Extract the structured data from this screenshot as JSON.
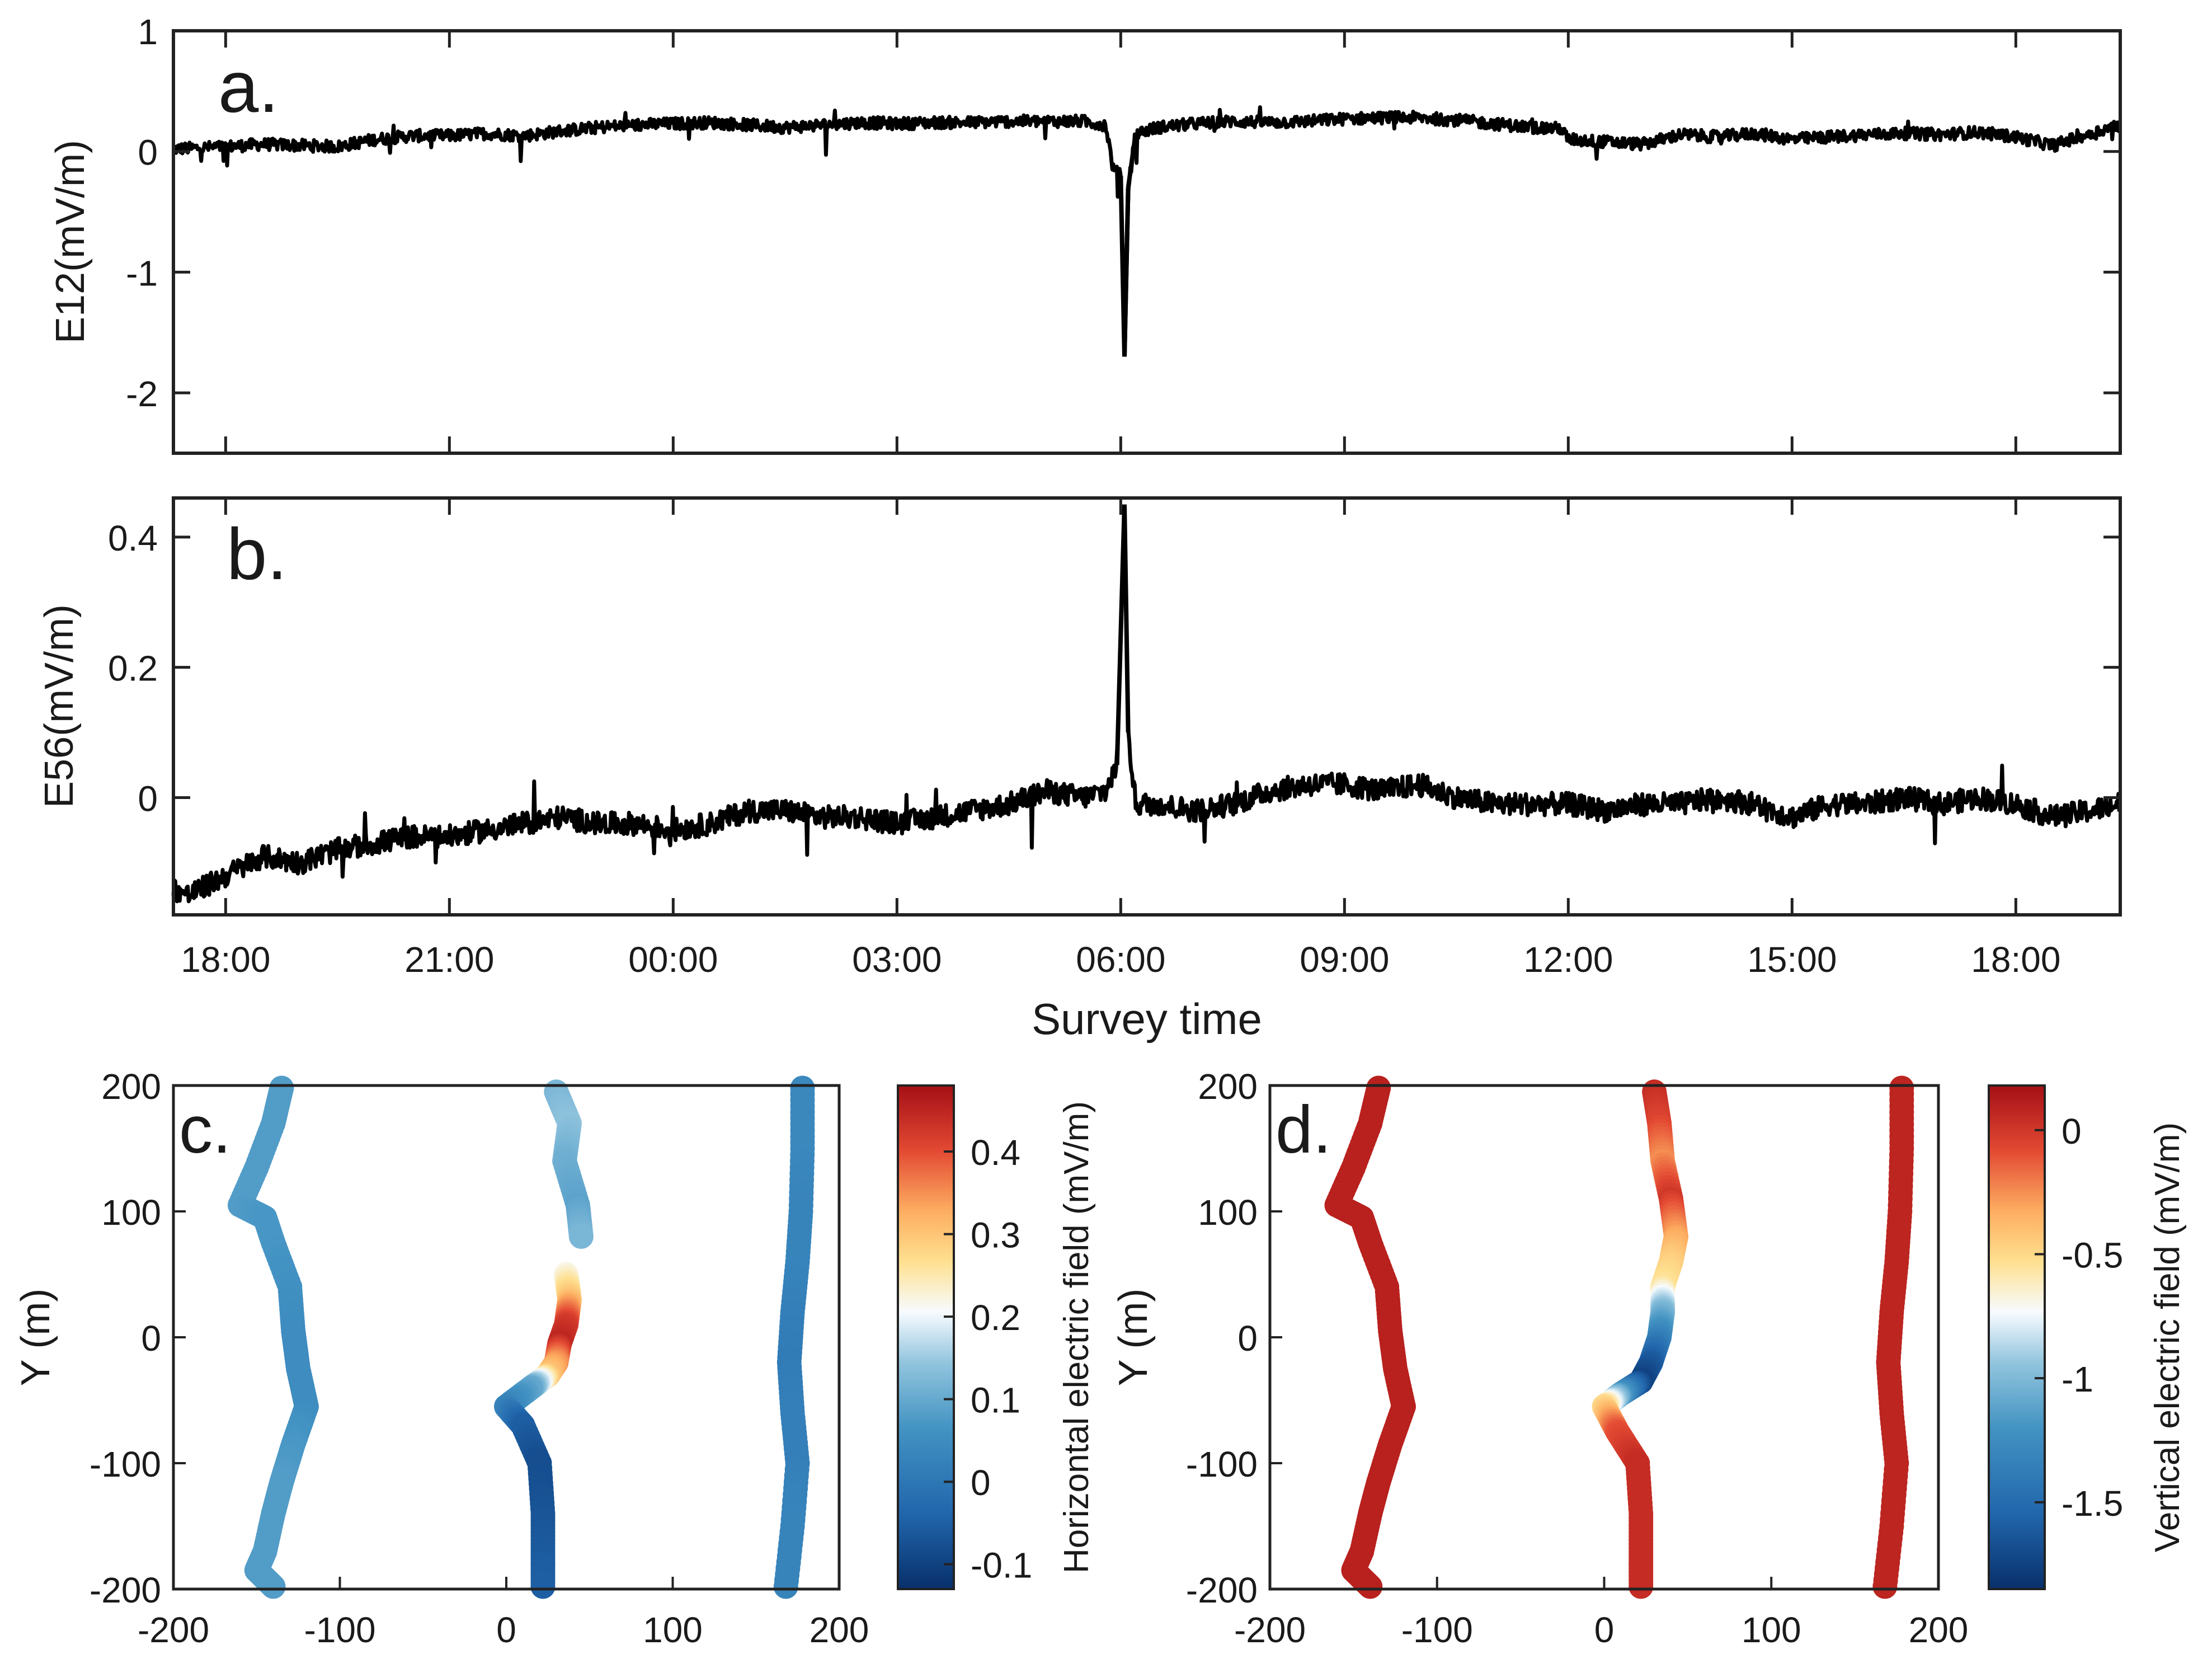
{
  "chart_data": [
    {
      "id": "a",
      "type": "line",
      "panel_label": "a.",
      "ylabel": "E12(mV/m)",
      "ylim": [
        -2.5,
        1
      ],
      "yticks": [
        -2,
        -1,
        0,
        1
      ],
      "ytick_labels": [
        "-2",
        "-1",
        "0",
        "1"
      ],
      "x_range_hours": [
        17.3,
        43.4
      ],
      "xtick_hours": [
        18,
        21,
        24,
        27,
        30,
        33,
        36,
        39,
        42
      ],
      "series": [
        {
          "name": "E12",
          "color": "#000000",
          "points": [
            [
              17.3,
              0.02
            ],
            [
              18.0,
              0.04
            ],
            [
              18.5,
              0.06
            ],
            [
              19.0,
              0.05
            ],
            [
              19.5,
              0.04
            ],
            [
              20.0,
              0.1
            ],
            [
              20.5,
              0.13
            ],
            [
              21.0,
              0.13
            ],
            [
              21.5,
              0.15
            ],
            [
              22.0,
              0.13
            ],
            [
              22.5,
              0.17
            ],
            [
              23.0,
              0.2
            ],
            [
              23.5,
              0.22
            ],
            [
              24.0,
              0.23
            ],
            [
              24.5,
              0.24
            ],
            [
              25.0,
              0.22
            ],
            [
              25.5,
              0.2
            ],
            [
              26.0,
              0.22
            ],
            [
              26.5,
              0.24
            ],
            [
              27.0,
              0.23
            ],
            [
              27.5,
              0.24
            ],
            [
              28.0,
              0.24
            ],
            [
              28.5,
              0.25
            ],
            [
              29.0,
              0.25
            ],
            [
              29.5,
              0.25
            ],
            [
              29.8,
              0.22
            ],
            [
              29.9,
              -0.15
            ],
            [
              30.0,
              -0.2
            ],
            [
              30.05,
              -1.7
            ],
            [
              30.1,
              -0.3
            ],
            [
              30.2,
              0.15
            ],
            [
              30.5,
              0.2
            ],
            [
              31.0,
              0.23
            ],
            [
              31.5,
              0.25
            ],
            [
              32.0,
              0.24
            ],
            [
              32.5,
              0.25
            ],
            [
              33.0,
              0.27
            ],
            [
              33.5,
              0.28
            ],
            [
              34.0,
              0.28
            ],
            [
              34.5,
              0.26
            ],
            [
              35.0,
              0.23
            ],
            [
              35.5,
              0.2
            ],
            [
              35.9,
              0.19
            ],
            [
              36.0,
              0.1
            ],
            [
              36.5,
              0.08
            ],
            [
              37.0,
              0.06
            ],
            [
              37.5,
              0.14
            ],
            [
              38.0,
              0.12
            ],
            [
              38.5,
              0.15
            ],
            [
              39.0,
              0.1
            ],
            [
              39.5,
              0.12
            ],
            [
              40.0,
              0.14
            ],
            [
              40.5,
              0.15
            ],
            [
              41.0,
              0.14
            ],
            [
              41.5,
              0.16
            ],
            [
              42.0,
              0.12
            ],
            [
              42.5,
              0.05
            ],
            [
              43.0,
              0.15
            ],
            [
              43.4,
              0.22
            ]
          ]
        }
      ]
    },
    {
      "id": "b",
      "type": "line",
      "panel_label": "b.",
      "ylabel": "E56(mV/m)",
      "xlabel": "Survey time",
      "ylim": [
        -0.18,
        0.46
      ],
      "yticks": [
        0,
        0.2,
        0.4
      ],
      "ytick_labels": [
        "0",
        "0.2",
        "0.4"
      ],
      "x_range_hours": [
        17.3,
        43.4
      ],
      "xtick_hours": [
        18,
        21,
        24,
        27,
        30,
        33,
        36,
        39,
        42
      ],
      "xtick_labels": [
        "18:00",
        "21:00",
        "00:00",
        "03:00",
        "06:00",
        "09:00",
        "12:00",
        "15:00",
        "18:00"
      ],
      "series": [
        {
          "name": "E56",
          "color": "#000000",
          "points": [
            [
              17.3,
              -0.14
            ],
            [
              17.5,
              -0.15
            ],
            [
              18.0,
              -0.12
            ],
            [
              18.5,
              -0.09
            ],
            [
              19.0,
              -0.1
            ],
            [
              19.5,
              -0.08
            ],
            [
              20.0,
              -0.07
            ],
            [
              20.5,
              -0.06
            ],
            [
              21.0,
              -0.06
            ],
            [
              21.5,
              -0.05
            ],
            [
              22.0,
              -0.04
            ],
            [
              22.5,
              -0.03
            ],
            [
              23.0,
              -0.04
            ],
            [
              23.5,
              -0.04
            ],
            [
              24.0,
              -0.05
            ],
            [
              24.5,
              -0.04
            ],
            [
              25.0,
              -0.02
            ],
            [
              25.5,
              -0.02
            ],
            [
              26.0,
              -0.03
            ],
            [
              26.5,
              -0.03
            ],
            [
              27.0,
              -0.04
            ],
            [
              27.5,
              -0.03
            ],
            [
              28.0,
              -0.02
            ],
            [
              28.5,
              -0.01
            ],
            [
              29.0,
              0.01
            ],
            [
              29.5,
              0.0
            ],
            [
              29.8,
              0.01
            ],
            [
              29.95,
              0.05
            ],
            [
              30.05,
              0.45
            ],
            [
              30.1,
              0.1
            ],
            [
              30.2,
              -0.01
            ],
            [
              30.5,
              -0.01
            ],
            [
              31.0,
              -0.02
            ],
            [
              31.5,
              -0.01
            ],
            [
              32.0,
              0.01
            ],
            [
              32.5,
              0.02
            ],
            [
              33.0,
              0.02
            ],
            [
              33.5,
              0.01
            ],
            [
              34.0,
              0.02
            ],
            [
              34.5,
              0.0
            ],
            [
              35.0,
              -0.01
            ],
            [
              35.5,
              -0.01
            ],
            [
              36.0,
              -0.01
            ],
            [
              36.5,
              -0.02
            ],
            [
              37.0,
              -0.01
            ],
            [
              37.5,
              -0.01
            ],
            [
              38.0,
              0.0
            ],
            [
              38.5,
              -0.01
            ],
            [
              39.0,
              -0.03
            ],
            [
              39.5,
              -0.01
            ],
            [
              40.0,
              -0.01
            ],
            [
              40.5,
              0.0
            ],
            [
              41.0,
              -0.01
            ],
            [
              41.5,
              0.0
            ],
            [
              42.0,
              -0.01
            ],
            [
              42.5,
              -0.03
            ],
            [
              43.0,
              -0.02
            ],
            [
              43.4,
              -0.01
            ]
          ]
        }
      ]
    },
    {
      "id": "c",
      "type": "scatter",
      "panel_label": "c.",
      "xlabel": "",
      "ylabel": "Y (m)",
      "xlim": [
        -200,
        200
      ],
      "ylim": [
        -200,
        200
      ],
      "xticks": [
        -200,
        -100,
        0,
        100,
        200
      ],
      "xtick_labels": [
        "-200",
        "-100",
        "0",
        "100",
        "200"
      ],
      "yticks": [
        -200,
        -100,
        0,
        100,
        200
      ],
      "ytick_labels": [
        "-200",
        "-100",
        "0",
        "100",
        "200"
      ],
      "colorbar": {
        "label": "Horizontal electric field  (mV/m)",
        "range": [
          -0.13,
          0.48
        ],
        "ticks": [
          -0.1,
          0,
          0.1,
          0.2,
          0.3,
          0.4
        ],
        "tick_labels": [
          "-0.1",
          "0",
          "0.1",
          "0.2",
          "0.3",
          "0.4"
        ]
      },
      "lines": [
        {
          "points": [
            [
              -135,
              198
            ],
            [
              -140,
              170
            ],
            [
              -150,
              135
            ],
            [
              -160,
              105
            ],
            [
              -145,
              95
            ],
            [
              -140,
              75
            ],
            [
              -130,
              40
            ],
            [
              -128,
              5
            ],
            [
              -125,
              -25
            ],
            [
              -120,
              -55
            ],
            [
              -128,
              -85
            ],
            [
              -135,
              -115
            ],
            [
              -140,
              -140
            ],
            [
              -145,
              -170
            ],
            [
              -150,
              -185
            ],
            [
              -140,
              -198
            ]
          ],
          "values": [
            0.08,
            0.08,
            0.08,
            0.08,
            0.07,
            0.07,
            0.06,
            0.05,
            0.05,
            0.05,
            0.07,
            0.08,
            0.08,
            0.08,
            0.08,
            0.08
          ]
        },
        {
          "points": [
            [
              30,
              195
            ],
            [
              38,
              170
            ],
            [
              35,
              140
            ],
            [
              43,
              105
            ],
            [
              45,
              80
            ]
          ],
          "values": [
            0.12,
            0.14,
            0.11,
            0.09,
            0.12
          ]
        },
        {
          "points": [
            [
              36,
              50
            ],
            [
              38,
              30
            ],
            [
              36,
              10
            ],
            [
              32,
              -5
            ],
            [
              30,
              -20
            ],
            [
              25,
              -30
            ],
            [
              15,
              -40
            ],
            [
              0,
              -55
            ],
            [
              10,
              -70
            ],
            [
              20,
              -100
            ],
            [
              22,
              -140
            ],
            [
              22,
              -170
            ],
            [
              22,
              -198
            ]
          ],
          "values": [
            0.22,
            0.3,
            0.42,
            0.45,
            0.35,
            0.3,
            0.1,
            0.03,
            -0.05,
            -0.08,
            -0.07,
            -0.06,
            -0.05
          ]
        },
        {
          "points": [
            [
              178,
              198
            ],
            [
              178,
              150
            ],
            [
              177,
              100
            ],
            [
              175,
              60
            ],
            [
              172,
              20
            ],
            [
              170,
              -20
            ],
            [
              172,
              -60
            ],
            [
              175,
              -100
            ],
            [
              172,
              -150
            ],
            [
              168,
              -198
            ]
          ],
          "values": [
            0.04,
            0.04,
            0.03,
            0.03,
            0.02,
            0.01,
            0.02,
            0.02,
            0.03,
            0.03
          ]
        }
      ]
    },
    {
      "id": "d",
      "type": "scatter",
      "panel_label": "d.",
      "xlabel": "",
      "ylabel": "Y (m)",
      "xlim": [
        -200,
        200
      ],
      "ylim": [
        -200,
        200
      ],
      "xticks": [
        -200,
        -100,
        0,
        100,
        200
      ],
      "xtick_labels": [
        "-200",
        "-100",
        "0",
        "100",
        "200"
      ],
      "yticks": [
        -200,
        -100,
        0,
        100,
        200
      ],
      "ytick_labels": [
        "-200",
        "-100",
        "0",
        "100",
        "200"
      ],
      "colorbar": {
        "label": "Vertical electric field  (mV/m)",
        "range": [
          -1.85,
          0.18
        ],
        "ticks": [
          -1.5,
          -1,
          -0.5,
          0
        ],
        "tick_labels": [
          "-1.5",
          "-1",
          "-0.5",
          "0"
        ]
      },
      "lines": [
        {
          "points": [
            [
              -135,
              198
            ],
            [
              -140,
              170
            ],
            [
              -150,
              135
            ],
            [
              -160,
              105
            ],
            [
              -145,
              95
            ],
            [
              -140,
              75
            ],
            [
              -130,
              40
            ],
            [
              -128,
              5
            ],
            [
              -125,
              -25
            ],
            [
              -120,
              -55
            ],
            [
              -128,
              -85
            ],
            [
              -135,
              -115
            ],
            [
              -140,
              -140
            ],
            [
              -145,
              -170
            ],
            [
              -150,
              -185
            ],
            [
              -140,
              -198
            ]
          ],
          "values": [
            0.1,
            0.1,
            0.1,
            0.1,
            0.1,
            0.1,
            0.1,
            0.1,
            0.1,
            0.1,
            0.1,
            0.1,
            0.1,
            0.1,
            0.1,
            0.1
          ]
        },
        {
          "points": [
            [
              30,
              195
            ],
            [
              33,
              170
            ],
            [
              35,
              140
            ],
            [
              40,
              110
            ],
            [
              43,
              80
            ],
            [
              40,
              60
            ],
            [
              35,
              40
            ],
            [
              35,
              20
            ],
            [
              33,
              0
            ],
            [
              28,
              -20
            ],
            [
              22,
              -35
            ],
            [
              10,
              -45
            ],
            [
              0,
              -55
            ],
            [
              8,
              -75
            ],
            [
              20,
              -100
            ],
            [
              22,
              -140
            ],
            [
              22,
              -170
            ],
            [
              22,
              -198
            ]
          ],
          "values": [
            0.05,
            -0.05,
            -0.25,
            0.0,
            -0.3,
            -0.45,
            -0.55,
            -1.0,
            -1.3,
            -1.6,
            -1.75,
            -1.2,
            -0.5,
            -0.1,
            0.05,
            0.05,
            0.05,
            0.05
          ]
        },
        {
          "points": [
            [
              178,
              198
            ],
            [
              178,
              150
            ],
            [
              177,
              100
            ],
            [
              175,
              60
            ],
            [
              172,
              20
            ],
            [
              170,
              -20
            ],
            [
              172,
              -60
            ],
            [
              175,
              -100
            ],
            [
              172,
              -150
            ],
            [
              168,
              -198
            ]
          ],
          "values": [
            0.08,
            0.08,
            0.08,
            0.08,
            0.08,
            0.08,
            0.08,
            0.08,
            0.08,
            0.08
          ]
        }
      ]
    }
  ]
}
